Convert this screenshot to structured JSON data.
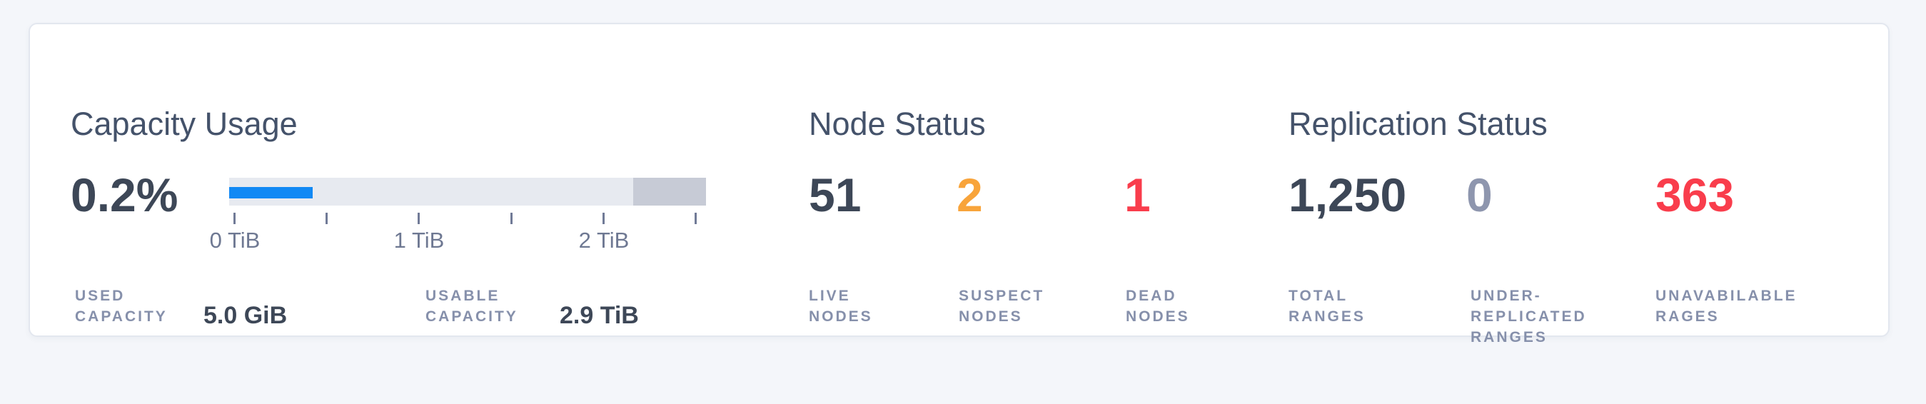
{
  "colors": {
    "page_background": "#f4f6fa",
    "card_background": "#ffffff",
    "title_text": "#44526a",
    "number_dark": "#3d4757",
    "number_warning": "#f8a43b",
    "number_danger": "#f93d4c",
    "number_muted": "#8e96ae",
    "label_text": "#8690ab",
    "tick_label_text": "#6e7892",
    "bar_track": "#e7eaf0",
    "bar_reserved_segment": "#c7cbd6",
    "bar_used_segment": "#1289f4"
  },
  "capacity": {
    "title": "Capacity Usage",
    "percent_used": "0.2%",
    "axis_tick_labels": [
      "0 TiB",
      "1 TiB",
      "2 TiB"
    ],
    "stats": [
      {
        "label_line1": "USED",
        "label_line2": "CAPACITY",
        "value": "5.0 GiB"
      },
      {
        "label_line1": "USABLE",
        "label_line2": "CAPACITY",
        "value": "2.9 TiB"
      }
    ]
  },
  "node_status": {
    "title": "Node Status",
    "stats": [
      {
        "value": "51",
        "label_line1": "LIVE",
        "label_line2": "NODES"
      },
      {
        "value": "2",
        "label_line1": "SUSPECT",
        "label_line2": "NODES"
      },
      {
        "value": "1",
        "label_line1": "DEAD",
        "label_line2": "NODES"
      }
    ]
  },
  "replication_status": {
    "title": "Replication Status",
    "stats": [
      {
        "value": "1,250",
        "label_line1": "TOTAL",
        "label_line2": "RANGES"
      },
      {
        "value": "0",
        "label_line1": "UNDER-",
        "label_line2": "REPLICATED",
        "label_line3": "RANGES"
      },
      {
        "value": "363",
        "label_line1": "UNAVABILABLE",
        "label_line2": "RAGES"
      }
    ]
  }
}
